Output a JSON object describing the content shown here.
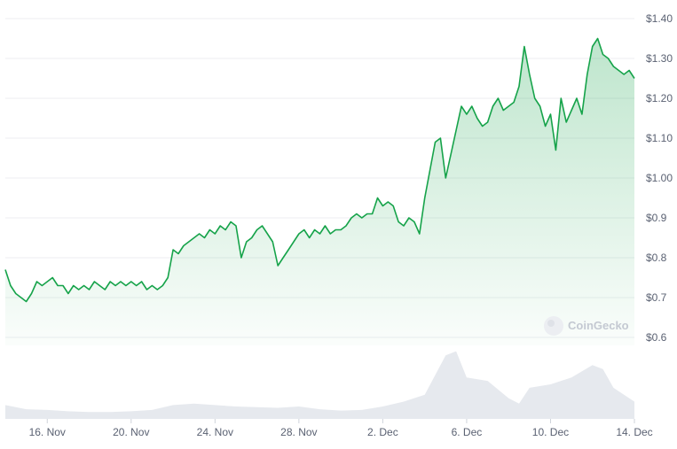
{
  "chart_data": {
    "type": "area",
    "title": "",
    "xlabel": "",
    "ylabel": "",
    "y_axis_side": "right",
    "grid": "horizontal",
    "line_color": "#16a34a",
    "fill_color": "#16a34a",
    "volume_color": "#e6e9ee",
    "ylim": [
      0.58,
      1.42
    ],
    "xlim": [
      "2024-11-14",
      "2024-12-14"
    ],
    "y_ticks": [
      {
        "value": 1.4,
        "label": "$1.40"
      },
      {
        "value": 1.3,
        "label": "$1.30"
      },
      {
        "value": 1.2,
        "label": "$1.20"
      },
      {
        "value": 1.1,
        "label": "$1.10"
      },
      {
        "value": 1.0,
        "label": "$1.00"
      },
      {
        "value": 0.9,
        "label": "$0.9"
      },
      {
        "value": 0.8,
        "label": "$0.8"
      },
      {
        "value": 0.7,
        "label": "$0.7"
      },
      {
        "value": 0.6,
        "label": "$0.6"
      }
    ],
    "x_ticks": [
      {
        "value": "2024-11-16",
        "label": "16. Nov"
      },
      {
        "value": "2024-11-20",
        "label": "20. Nov"
      },
      {
        "value": "2024-11-24",
        "label": "24. Nov"
      },
      {
        "value": "2024-11-28",
        "label": "28. Nov"
      },
      {
        "value": "2024-12-02",
        "label": "2. Dec"
      },
      {
        "value": "2024-12-06",
        "label": "6. Dec"
      },
      {
        "value": "2024-12-10",
        "label": "10. Dec"
      },
      {
        "value": "2024-12-14",
        "label": "14. Dec"
      }
    ],
    "series": [
      {
        "values": [
          [
            "2024-11-14 00:00",
            0.77
          ],
          [
            "2024-11-14 06:00",
            0.73
          ],
          [
            "2024-11-14 12:00",
            0.71
          ],
          [
            "2024-11-14 18:00",
            0.7
          ],
          [
            "2024-11-15 00:00",
            0.69
          ],
          [
            "2024-11-15 06:00",
            0.71
          ],
          [
            "2024-11-15 12:00",
            0.74
          ],
          [
            "2024-11-15 18:00",
            0.73
          ],
          [
            "2024-11-16 00:00",
            0.74
          ],
          [
            "2024-11-16 06:00",
            0.75
          ],
          [
            "2024-11-16 12:00",
            0.73
          ],
          [
            "2024-11-16 18:00",
            0.73
          ],
          [
            "2024-11-17 00:00",
            0.71
          ],
          [
            "2024-11-17 06:00",
            0.73
          ],
          [
            "2024-11-17 12:00",
            0.72
          ],
          [
            "2024-11-17 18:00",
            0.73
          ],
          [
            "2024-11-18 00:00",
            0.72
          ],
          [
            "2024-11-18 06:00",
            0.74
          ],
          [
            "2024-11-18 12:00",
            0.73
          ],
          [
            "2024-11-18 18:00",
            0.72
          ],
          [
            "2024-11-19 00:00",
            0.74
          ],
          [
            "2024-11-19 06:00",
            0.73
          ],
          [
            "2024-11-19 12:00",
            0.74
          ],
          [
            "2024-11-19 18:00",
            0.73
          ],
          [
            "2024-11-20 00:00",
            0.74
          ],
          [
            "2024-11-20 06:00",
            0.73
          ],
          [
            "2024-11-20 12:00",
            0.74
          ],
          [
            "2024-11-20 18:00",
            0.72
          ],
          [
            "2024-11-21 00:00",
            0.73
          ],
          [
            "2024-11-21 06:00",
            0.72
          ],
          [
            "2024-11-21 12:00",
            0.73
          ],
          [
            "2024-11-21 18:00",
            0.75
          ],
          [
            "2024-11-22 00:00",
            0.82
          ],
          [
            "2024-11-22 06:00",
            0.81
          ],
          [
            "2024-11-22 12:00",
            0.83
          ],
          [
            "2024-11-22 18:00",
            0.84
          ],
          [
            "2024-11-23 00:00",
            0.85
          ],
          [
            "2024-11-23 06:00",
            0.86
          ],
          [
            "2024-11-23 12:00",
            0.85
          ],
          [
            "2024-11-23 18:00",
            0.87
          ],
          [
            "2024-11-24 00:00",
            0.86
          ],
          [
            "2024-11-24 06:00",
            0.88
          ],
          [
            "2024-11-24 12:00",
            0.87
          ],
          [
            "2024-11-24 18:00",
            0.89
          ],
          [
            "2024-11-25 00:00",
            0.88
          ],
          [
            "2024-11-25 06:00",
            0.8
          ],
          [
            "2024-11-25 12:00",
            0.84
          ],
          [
            "2024-11-25 18:00",
            0.85
          ],
          [
            "2024-11-26 00:00",
            0.87
          ],
          [
            "2024-11-26 06:00",
            0.88
          ],
          [
            "2024-11-26 12:00",
            0.86
          ],
          [
            "2024-11-26 18:00",
            0.84
          ],
          [
            "2024-11-27 00:00",
            0.78
          ],
          [
            "2024-11-27 06:00",
            0.8
          ],
          [
            "2024-11-27 12:00",
            0.82
          ],
          [
            "2024-11-27 18:00",
            0.84
          ],
          [
            "2024-11-28 00:00",
            0.86
          ],
          [
            "2024-11-28 06:00",
            0.87
          ],
          [
            "2024-11-28 12:00",
            0.85
          ],
          [
            "2024-11-28 18:00",
            0.87
          ],
          [
            "2024-11-29 00:00",
            0.86
          ],
          [
            "2024-11-29 06:00",
            0.88
          ],
          [
            "2024-11-29 12:00",
            0.86
          ],
          [
            "2024-11-29 18:00",
            0.87
          ],
          [
            "2024-11-30 00:00",
            0.87
          ],
          [
            "2024-11-30 06:00",
            0.88
          ],
          [
            "2024-11-30 12:00",
            0.9
          ],
          [
            "2024-11-30 18:00",
            0.91
          ],
          [
            "2024-12-01 00:00",
            0.9
          ],
          [
            "2024-12-01 06:00",
            0.91
          ],
          [
            "2024-12-01 12:00",
            0.91
          ],
          [
            "2024-12-01 18:00",
            0.95
          ],
          [
            "2024-12-02 00:00",
            0.93
          ],
          [
            "2024-12-02 06:00",
            0.94
          ],
          [
            "2024-12-02 12:00",
            0.93
          ],
          [
            "2024-12-02 18:00",
            0.89
          ],
          [
            "2024-12-03 00:00",
            0.88
          ],
          [
            "2024-12-03 06:00",
            0.9
          ],
          [
            "2024-12-03 12:00",
            0.89
          ],
          [
            "2024-12-03 18:00",
            0.86
          ],
          [
            "2024-12-04 00:00",
            0.95
          ],
          [
            "2024-12-04 06:00",
            1.02
          ],
          [
            "2024-12-04 12:00",
            1.09
          ],
          [
            "2024-12-04 18:00",
            1.1
          ],
          [
            "2024-12-05 00:00",
            1.0
          ],
          [
            "2024-12-05 06:00",
            1.06
          ],
          [
            "2024-12-05 12:00",
            1.12
          ],
          [
            "2024-12-05 18:00",
            1.18
          ],
          [
            "2024-12-06 00:00",
            1.16
          ],
          [
            "2024-12-06 06:00",
            1.18
          ],
          [
            "2024-12-06 12:00",
            1.15
          ],
          [
            "2024-12-06 18:00",
            1.13
          ],
          [
            "2024-12-07 00:00",
            1.14
          ],
          [
            "2024-12-07 06:00",
            1.18
          ],
          [
            "2024-12-07 12:00",
            1.2
          ],
          [
            "2024-12-07 18:00",
            1.17
          ],
          [
            "2024-12-08 00:00",
            1.18
          ],
          [
            "2024-12-08 06:00",
            1.19
          ],
          [
            "2024-12-08 12:00",
            1.23
          ],
          [
            "2024-12-08 18:00",
            1.33
          ],
          [
            "2024-12-09 00:00",
            1.26
          ],
          [
            "2024-12-09 06:00",
            1.2
          ],
          [
            "2024-12-09 12:00",
            1.18
          ],
          [
            "2024-12-09 18:00",
            1.13
          ],
          [
            "2024-12-10 00:00",
            1.16
          ],
          [
            "2024-12-10 06:00",
            1.07
          ],
          [
            "2024-12-10 12:00",
            1.2
          ],
          [
            "2024-12-10 18:00",
            1.14
          ],
          [
            "2024-12-11 00:00",
            1.17
          ],
          [
            "2024-12-11 06:00",
            1.2
          ],
          [
            "2024-12-11 12:00",
            1.16
          ],
          [
            "2024-12-11 18:00",
            1.26
          ],
          [
            "2024-12-12 00:00",
            1.33
          ],
          [
            "2024-12-12 06:00",
            1.35
          ],
          [
            "2024-12-12 12:00",
            1.31
          ],
          [
            "2024-12-12 18:00",
            1.3
          ],
          [
            "2024-12-13 00:00",
            1.28
          ],
          [
            "2024-12-13 06:00",
            1.27
          ],
          [
            "2024-12-13 12:00",
            1.26
          ],
          [
            "2024-12-13 18:00",
            1.27
          ],
          [
            "2024-12-14 00:00",
            1.25
          ]
        ]
      }
    ],
    "volume": [
      [
        "2024-11-14 00:00",
        0.2
      ],
      [
        "2024-11-15 00:00",
        0.14
      ],
      [
        "2024-11-16 00:00",
        0.13
      ],
      [
        "2024-11-17 00:00",
        0.11
      ],
      [
        "2024-11-18 00:00",
        0.1
      ],
      [
        "2024-11-19 00:00",
        0.1
      ],
      [
        "2024-11-20 00:00",
        0.11
      ],
      [
        "2024-11-21 00:00",
        0.13
      ],
      [
        "2024-11-22 00:00",
        0.2
      ],
      [
        "2024-11-23 00:00",
        0.22
      ],
      [
        "2024-11-24 00:00",
        0.2
      ],
      [
        "2024-11-25 00:00",
        0.18
      ],
      [
        "2024-11-26 00:00",
        0.17
      ],
      [
        "2024-11-27 00:00",
        0.16
      ],
      [
        "2024-11-28 00:00",
        0.18
      ],
      [
        "2024-11-29 00:00",
        0.14
      ],
      [
        "2024-11-30 00:00",
        0.12
      ],
      [
        "2024-12-01 00:00",
        0.13
      ],
      [
        "2024-12-02 00:00",
        0.18
      ],
      [
        "2024-12-03 00:00",
        0.25
      ],
      [
        "2024-12-04 00:00",
        0.35
      ],
      [
        "2024-12-05 00:00",
        0.92
      ],
      [
        "2024-12-05 12:00",
        0.98
      ],
      [
        "2024-12-06 00:00",
        0.6
      ],
      [
        "2024-12-07 00:00",
        0.55
      ],
      [
        "2024-12-08 00:00",
        0.3
      ],
      [
        "2024-12-08 12:00",
        0.22
      ],
      [
        "2024-12-09 00:00",
        0.45
      ],
      [
        "2024-12-10 00:00",
        0.5
      ],
      [
        "2024-12-11 00:00",
        0.6
      ],
      [
        "2024-12-12 00:00",
        0.78
      ],
      [
        "2024-12-12 12:00",
        0.72
      ],
      [
        "2024-12-13 00:00",
        0.45
      ],
      [
        "2024-12-14 00:00",
        0.25
      ]
    ]
  },
  "watermark": {
    "text": "CoinGecko",
    "icon": "gecko-logo-icon"
  }
}
